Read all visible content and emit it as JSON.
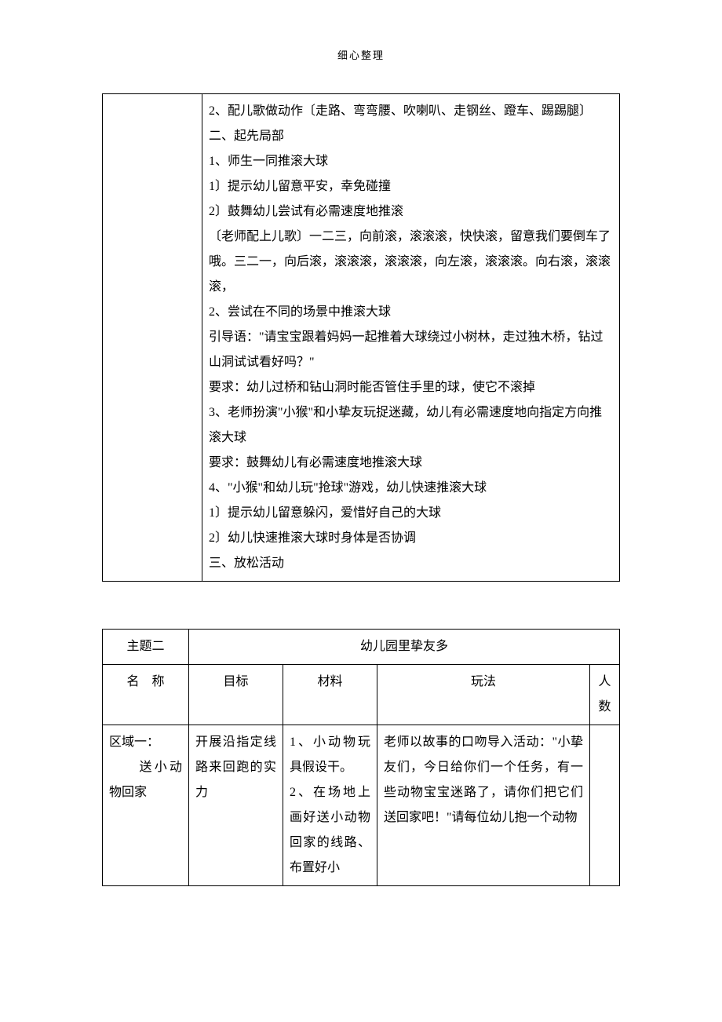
{
  "doc": {
    "header": "细心整理",
    "table1": {
      "left": "",
      "lines": [
        "2、配儿歌做动作〔走路、弯弯腰、吹喇叭、走钢丝、蹬车、踢踢腿〕",
        "二、起先局部",
        "1、师生一同推滚大球",
        "1〕提示幼儿留意平安，幸免碰撞",
        "2〕鼓舞幼儿尝试有必需速度地推滚",
        "〔老师配上儿歌〕一二三，向前滚，滚滚滚，快快滚，留意我们要倒车了哦。三二一，向后滚，滚滚滚，滚滚滚，向左滚，滚滚滚。向右滚，滚滚滚，",
        "2、尝试在不同的场景中推滚大球",
        "引导语：\"请宝宝跟着妈妈一起推着大球绕过小树林，走过独木桥，钻过山洞试试看好吗？\"",
        "要求：幼儿过桥和钻山洞时能否管住手里的球，使它不滚掉",
        "3、老师扮演\"小猴\"和小挚友玩捉迷藏，幼儿有必需速度地向指定方向推滚大球",
        "要求：鼓舞幼儿有必需速度地推滚大球",
        "4、\"小猴\"和幼儿玩\"抢球\"游戏，幼儿快速推滚大球",
        "1〕提示幼儿留意躲闪，爱惜好自己的大球",
        "2〕幼儿快速推滚大球时身体是否协调",
        "三、放松活动"
      ]
    },
    "table2": {
      "r1c1": "主题二",
      "r1c2": "幼儿园里挚友多",
      "h_name": "名　称",
      "h_goal": "目标",
      "h_mat": "材料",
      "h_play": "玩法",
      "h_num": "人数",
      "row1": {
        "name": "区域一：\n　　送小动物回家",
        "goal": "开展沿指定线路来回跑的实力",
        "mat": "1、小动物玩具假设干。\n2、在场地上画好送小动物回家的线路、布置好小",
        "play": "老师以故事的口吻导入活动：\"小挚友们，今日给你们一个任务，有一些动物宝宝迷路了，请你们把它们送回家吧！\"请每位幼儿抱一个动物",
        "num": ""
      }
    }
  }
}
